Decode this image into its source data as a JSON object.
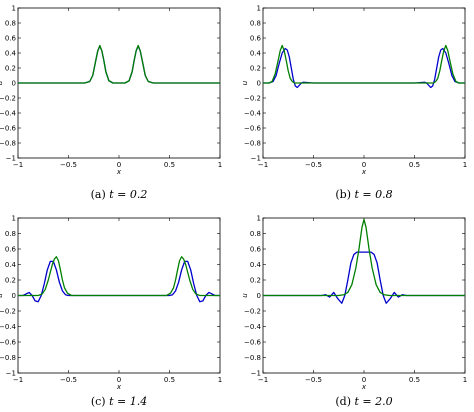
{
  "chart_data": [
    {
      "type": "line",
      "caption_label": "(a)",
      "caption_text": "t = 0.2",
      "xlabel": "x",
      "ylabel": "u",
      "xlim": [
        -1,
        1
      ],
      "ylim": [
        -1,
        1
      ],
      "xticks": [
        "-1",
        "-0.5",
        "0",
        "0.5",
        "1"
      ],
      "yticks": [
        "1",
        "0.8",
        "0.6",
        "0.4",
        "0.2",
        "0",
        "-0.2",
        "-0.4",
        "-0.6",
        "-0.8",
        "-1"
      ],
      "grid": false,
      "series": [
        {
          "color": "#0000cc",
          "x": [
            -1,
            -0.34,
            -0.29,
            -0.26,
            -0.23,
            -0.21,
            -0.19,
            -0.17,
            -0.15,
            -0.13,
            -0.1,
            -0.06,
            0,
            0.06,
            0.1,
            0.13,
            0.15,
            0.17,
            0.19,
            0.21,
            0.23,
            0.26,
            0.29,
            0.34,
            1
          ],
          "y": [
            0,
            0,
            0.02,
            0.1,
            0.3,
            0.43,
            0.49,
            0.43,
            0.3,
            0.15,
            0.03,
            0,
            0,
            0,
            0.03,
            0.15,
            0.3,
            0.43,
            0.49,
            0.43,
            0.3,
            0.1,
            0.02,
            0,
            0
          ]
        },
        {
          "color": "#008000",
          "x": [
            -1,
            -0.34,
            -0.29,
            -0.26,
            -0.23,
            -0.21,
            -0.19,
            -0.17,
            -0.15,
            -0.13,
            -0.1,
            -0.06,
            0,
            0.06,
            0.1,
            0.13,
            0.15,
            0.17,
            0.19,
            0.21,
            0.23,
            0.26,
            0.29,
            0.34,
            1
          ],
          "y": [
            0,
            0,
            0.02,
            0.1,
            0.3,
            0.43,
            0.5,
            0.43,
            0.3,
            0.15,
            0.03,
            0,
            0,
            0,
            0.03,
            0.15,
            0.3,
            0.43,
            0.5,
            0.43,
            0.3,
            0.1,
            0.02,
            0,
            0
          ]
        }
      ]
    },
    {
      "type": "line",
      "caption_label": "(b)",
      "caption_text": "t = 0.8",
      "xlabel": "x",
      "ylabel": "u",
      "xlim": [
        -1,
        1
      ],
      "ylim": [
        -1,
        1
      ],
      "xticks": [
        "-1",
        "-0.5",
        "0",
        "0.5",
        "1"
      ],
      "yticks": [
        "1",
        "0.8",
        "0.6",
        "0.4",
        "0.2",
        "0",
        "-0.2",
        "-0.4",
        "-0.6",
        "-0.8",
        "-1"
      ],
      "grid": false,
      "series": [
        {
          "color": "#0000cc",
          "x": [
            -1,
            -0.94,
            -0.9,
            -0.87,
            -0.84,
            -0.81,
            -0.78,
            -0.76,
            -0.74,
            -0.72,
            -0.7,
            -0.68,
            -0.66,
            -0.64,
            -0.62,
            -0.6,
            -0.5,
            0.5,
            0.6,
            0.62,
            0.64,
            0.66,
            0.68,
            0.7,
            0.72,
            0.74,
            0.76,
            0.78,
            0.81,
            0.84,
            0.87,
            0.9,
            0.94,
            1
          ],
          "y": [
            0,
            0,
            0.02,
            0.1,
            0.26,
            0.4,
            0.46,
            0.44,
            0.35,
            0.2,
            0.05,
            -0.04,
            -0.06,
            -0.03,
            0,
            0.01,
            0,
            0,
            0.01,
            0,
            -0.03,
            -0.06,
            -0.04,
            0.05,
            0.2,
            0.35,
            0.44,
            0.46,
            0.4,
            0.26,
            0.1,
            0.02,
            0,
            0
          ]
        },
        {
          "color": "#008000",
          "x": [
            -1,
            -0.94,
            -0.91,
            -0.88,
            -0.85,
            -0.83,
            -0.81,
            -0.79,
            -0.77,
            -0.75,
            -0.73,
            -0.71,
            -0.69,
            -0.66,
            -0.6,
            0.6,
            0.66,
            0.69,
            0.71,
            0.73,
            0.75,
            0.77,
            0.79,
            0.81,
            0.83,
            0.85,
            0.88,
            0.91,
            0.94,
            1
          ],
          "y": [
            0,
            0,
            0.02,
            0.12,
            0.3,
            0.43,
            0.5,
            0.43,
            0.3,
            0.16,
            0.06,
            0.02,
            0,
            0,
            0,
            0,
            0,
            0,
            0.02,
            0.06,
            0.16,
            0.3,
            0.43,
            0.5,
            0.43,
            0.3,
            0.12,
            0.02,
            0,
            0
          ]
        }
      ]
    },
    {
      "type": "line",
      "caption_label": "(c)",
      "caption_text": "t = 1.4",
      "xlabel": "x",
      "ylabel": "u",
      "xlim": [
        -1,
        1
      ],
      "ylim": [
        -1,
        1
      ],
      "xticks": [
        "-1",
        "-0.5",
        "0",
        "0.5",
        "1"
      ],
      "yticks": [
        "1",
        "0.8",
        "0.6",
        "0.4",
        "0.2",
        "0",
        "-0.2",
        "-0.4",
        "-0.6",
        "-0.8",
        "-1"
      ],
      "grid": false,
      "series": [
        {
          "color": "#0000cc",
          "x": [
            -1,
            -0.95,
            -0.92,
            -0.89,
            -0.86,
            -0.83,
            -0.8,
            -0.77,
            -0.74,
            -0.71,
            -0.68,
            -0.65,
            -0.62,
            -0.59,
            -0.56,
            -0.53,
            -0.5,
            -0.45,
            -0.4,
            0.4,
            0.45,
            0.5,
            0.53,
            0.56,
            0.59,
            0.62,
            0.65,
            0.68,
            0.71,
            0.74,
            0.77,
            0.8,
            0.83,
            0.86,
            0.89,
            0.92,
            0.95,
            1
          ],
          "y": [
            0,
            0,
            0.02,
            0.04,
            0,
            -0.07,
            -0.08,
            0,
            0.15,
            0.33,
            0.44,
            0.44,
            0.33,
            0.17,
            0.06,
            0.01,
            0,
            0,
            0,
            0,
            0,
            0,
            0.01,
            0.06,
            0.17,
            0.33,
            0.44,
            0.44,
            0.33,
            0.15,
            0,
            -0.08,
            -0.07,
            0,
            0.04,
            0.02,
            0,
            0
          ]
        },
        {
          "color": "#008000",
          "x": [
            -1,
            -0.8,
            -0.76,
            -0.73,
            -0.7,
            -0.68,
            -0.66,
            -0.64,
            -0.62,
            -0.6,
            -0.58,
            -0.56,
            -0.54,
            -0.51,
            -0.47,
            -0.42,
            0.42,
            0.47,
            0.51,
            0.54,
            0.56,
            0.58,
            0.6,
            0.62,
            0.64,
            0.66,
            0.68,
            0.7,
            0.73,
            0.76,
            0.8,
            1
          ],
          "y": [
            0,
            0,
            0.02,
            0.08,
            0.2,
            0.3,
            0.4,
            0.47,
            0.5,
            0.45,
            0.33,
            0.2,
            0.1,
            0.03,
            0,
            0,
            0,
            0,
            0.03,
            0.1,
            0.2,
            0.33,
            0.45,
            0.5,
            0.47,
            0.4,
            0.3,
            0.2,
            0.08,
            0.02,
            0,
            0
          ]
        }
      ]
    },
    {
      "type": "line",
      "caption_label": "(d)",
      "caption_text": "t = 2.0",
      "xlabel": "x",
      "ylabel": "u",
      "xlim": [
        -1,
        1
      ],
      "ylim": [
        -1,
        1
      ],
      "xticks": [
        "-1",
        "-0.5",
        "0",
        "0.5",
        "1"
      ],
      "yticks": [
        "1",
        "0.8",
        "0.6",
        "0.4",
        "0.2",
        "0",
        "-0.2",
        "-0.4",
        "-0.6",
        "-0.8",
        "-1"
      ],
      "grid": false,
      "series": [
        {
          "color": "#0000cc",
          "x": [
            -1,
            -0.42,
            -0.38,
            -0.34,
            -0.3,
            -0.26,
            -0.22,
            -0.19,
            -0.16,
            -0.13,
            -0.1,
            -0.07,
            -0.04,
            0,
            0.04,
            0.07,
            0.1,
            0.13,
            0.16,
            0.19,
            0.22,
            0.26,
            0.3,
            0.34,
            0.38,
            0.42,
            1
          ],
          "y": [
            0,
            0,
            0.01,
            -0.02,
            0.04,
            -0.04,
            -0.1,
            0,
            0.2,
            0.42,
            0.53,
            0.56,
            0.56,
            0.56,
            0.56,
            0.56,
            0.53,
            0.42,
            0.2,
            0,
            -0.1,
            -0.04,
            0.04,
            -0.02,
            0.01,
            0,
            0
          ]
        },
        {
          "color": "#008000",
          "x": [
            -1,
            -0.25,
            -0.2,
            -0.16,
            -0.12,
            -0.08,
            -0.05,
            -0.02,
            0,
            0.02,
            0.05,
            0.08,
            0.12,
            0.16,
            0.2,
            0.25,
            1
          ],
          "y": [
            0,
            0,
            0.01,
            0.04,
            0.14,
            0.36,
            0.6,
            0.88,
            0.98,
            0.88,
            0.6,
            0.36,
            0.14,
            0.04,
            0.01,
            0,
            0
          ]
        }
      ]
    }
  ]
}
